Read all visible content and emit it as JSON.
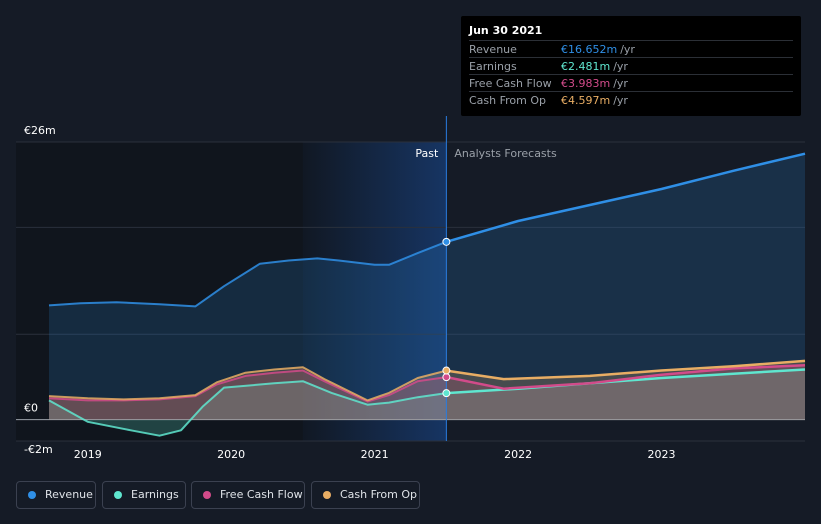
{
  "chart_data": {
    "type": "area",
    "currency": "€",
    "ylim": [
      -2,
      26
    ],
    "y_ticks": [
      {
        "value": 26,
        "label": "€26m"
      },
      {
        "value": 0,
        "label": "€0"
      },
      {
        "value": -2,
        "label": "-€2m"
      }
    ],
    "xlim": [
      2018.5,
      2024.0
    ],
    "x_ticks": [
      {
        "value": 2019,
        "label": "2019"
      },
      {
        "value": 2020,
        "label": "2020"
      },
      {
        "value": 2021,
        "label": "2021"
      },
      {
        "value": 2022,
        "label": "2022"
      },
      {
        "value": 2023,
        "label": "2023"
      }
    ],
    "divider_x": 2021.5,
    "highlight_start_x": 2020.5,
    "past_label": "Past",
    "forecast_label": "Analysts Forecasts",
    "series": [
      {
        "name": "Revenue",
        "color": "#2f8fe6",
        "past": [
          [
            2018.73,
            10.7
          ],
          [
            2018.95,
            10.9
          ],
          [
            2019.2,
            11.0
          ],
          [
            2019.5,
            10.8
          ],
          [
            2019.75,
            10.6
          ],
          [
            2019.95,
            12.5
          ],
          [
            2020.2,
            14.6
          ],
          [
            2020.4,
            14.9
          ],
          [
            2020.6,
            15.1
          ],
          [
            2020.75,
            14.9
          ],
          [
            2021.0,
            14.5
          ],
          [
            2021.1,
            14.5
          ],
          [
            2021.3,
            15.6
          ],
          [
            2021.5,
            16.652
          ]
        ],
        "forecast": [
          [
            2021.5,
            16.652
          ],
          [
            2022.0,
            18.6
          ],
          [
            2022.5,
            20.1
          ],
          [
            2023.0,
            21.6
          ],
          [
            2023.5,
            23.3
          ],
          [
            2024.0,
            24.9
          ]
        ]
      },
      {
        "name": "Earnings",
        "color": "#5fe6cf",
        "past": [
          [
            2018.73,
            1.8
          ],
          [
            2019.0,
            -0.2
          ],
          [
            2019.3,
            -1.0
          ],
          [
            2019.5,
            -1.5
          ],
          [
            2019.65,
            -1.0
          ],
          [
            2019.8,
            1.2
          ],
          [
            2019.95,
            3.0
          ],
          [
            2020.3,
            3.4
          ],
          [
            2020.5,
            3.6
          ],
          [
            2020.7,
            2.5
          ],
          [
            2020.95,
            1.4
          ],
          [
            2021.1,
            1.6
          ],
          [
            2021.3,
            2.1
          ],
          [
            2021.5,
            2.481
          ]
        ],
        "forecast": [
          [
            2021.5,
            2.481
          ],
          [
            2022.0,
            2.9
          ],
          [
            2022.5,
            3.4
          ],
          [
            2023.0,
            3.9
          ],
          [
            2023.5,
            4.3
          ],
          [
            2024.0,
            4.7
          ]
        ]
      },
      {
        "name": "Free Cash Flow",
        "color": "#d24b8a",
        "past": [
          [
            2018.73,
            2.0
          ],
          [
            2019.0,
            1.8
          ],
          [
            2019.25,
            1.8
          ],
          [
            2019.5,
            1.9
          ],
          [
            2019.75,
            2.2
          ],
          [
            2019.9,
            3.3
          ],
          [
            2020.1,
            4.1
          ],
          [
            2020.3,
            4.4
          ],
          [
            2020.5,
            4.6
          ],
          [
            2020.65,
            3.6
          ],
          [
            2020.95,
            1.7
          ],
          [
            2021.1,
            2.3
          ],
          [
            2021.3,
            3.6
          ],
          [
            2021.5,
            3.983
          ]
        ],
        "forecast": [
          [
            2021.5,
            3.983
          ],
          [
            2021.9,
            2.9
          ],
          [
            2022.5,
            3.4
          ],
          [
            2023.0,
            4.2
          ],
          [
            2023.5,
            4.8
          ],
          [
            2024.0,
            5.1
          ]
        ]
      },
      {
        "name": "Cash From Op",
        "color": "#e8ad64",
        "past": [
          [
            2018.73,
            2.2
          ],
          [
            2019.0,
            2.0
          ],
          [
            2019.25,
            1.9
          ],
          [
            2019.5,
            2.0
          ],
          [
            2019.75,
            2.3
          ],
          [
            2019.9,
            3.5
          ],
          [
            2020.1,
            4.4
          ],
          [
            2020.3,
            4.7
          ],
          [
            2020.5,
            4.9
          ],
          [
            2020.65,
            3.8
          ],
          [
            2020.95,
            1.8
          ],
          [
            2021.1,
            2.5
          ],
          [
            2021.3,
            3.9
          ],
          [
            2021.5,
            4.597
          ]
        ],
        "forecast": [
          [
            2021.5,
            4.597
          ],
          [
            2021.9,
            3.8
          ],
          [
            2022.5,
            4.1
          ],
          [
            2023.0,
            4.6
          ],
          [
            2023.5,
            5.0
          ],
          [
            2024.0,
            5.5
          ]
        ]
      }
    ]
  },
  "tooltip": {
    "date": "Jun 30 2021",
    "rows": [
      {
        "label": "Revenue",
        "value": "€16.652m",
        "unit": "/yr",
        "color": "#2f8fe6"
      },
      {
        "label": "Earnings",
        "value": "€2.481m",
        "unit": "/yr",
        "color": "#5fe6cf"
      },
      {
        "label": "Free Cash Flow",
        "value": "€3.983m",
        "unit": "/yr",
        "color": "#d24b8a"
      },
      {
        "label": "Cash From Op",
        "value": "€4.597m",
        "unit": "/yr",
        "color": "#e8ad64"
      }
    ]
  },
  "legend": [
    {
      "label": "Revenue",
      "color": "#2f8fe6"
    },
    {
      "label": "Earnings",
      "color": "#5fe6cf"
    },
    {
      "label": "Free Cash Flow",
      "color": "#d24b8a"
    },
    {
      "label": "Cash From Op",
      "color": "#e8ad64"
    }
  ]
}
